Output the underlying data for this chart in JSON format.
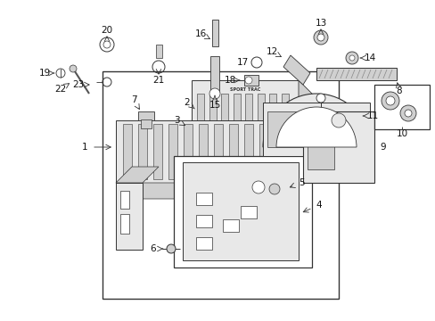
{
  "bg": "white",
  "line_color": "#333333",
  "fill_light": "#e8e8e8",
  "fill_mid": "#d0d0d0",
  "fill_dark": "#b0b0b0",
  "fig_w": 4.89,
  "fig_h": 3.6,
  "dpi": 100
}
